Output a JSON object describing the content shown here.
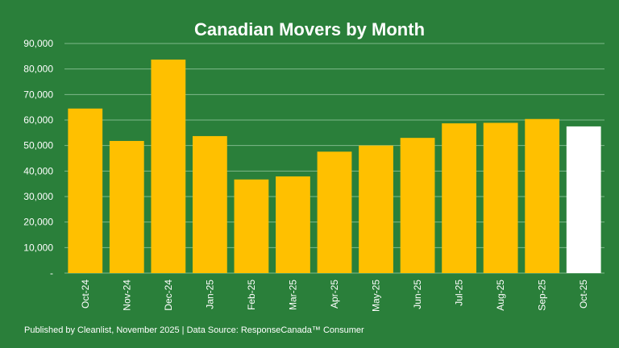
{
  "chart_data": {
    "type": "bar",
    "title": "Canadian Movers by Month",
    "xlabel": "",
    "ylabel": "",
    "categories": [
      "Oct-24",
      "Nov-24",
      "Dec-24",
      "Jan-25",
      "Feb-25",
      "Mar-25",
      "Apr-25",
      "May-25",
      "Jun-25",
      "Jul-25",
      "Aug-25",
      "Sep-25",
      "Oct-25"
    ],
    "values": [
      64500,
      51800,
      83700,
      53700,
      36700,
      37900,
      47600,
      50000,
      53000,
      58700,
      58900,
      60400,
      57500
    ],
    "ylim": [
      0,
      90000
    ],
    "yticks": [
      0,
      10000,
      20000,
      30000,
      40000,
      50000,
      60000,
      70000,
      80000,
      90000
    ],
    "ytick_labels": [
      "-",
      "10,000",
      "20,000",
      "30,000",
      "40,000",
      "50,000",
      "60,000",
      "70,000",
      "80,000",
      "90,000"
    ],
    "grid": true,
    "bar_color": "#ffc000",
    "highlight_category": "Oct-25",
    "highlight_color": "#ffffff"
  },
  "footer_text": "Published by Cleanlist, November 2025 | Data Source: ResponseCanada™ Consumer",
  "colors": {
    "background": "#2a7f3a",
    "gridline": "#7fb88a",
    "text": "#ffffff"
  }
}
